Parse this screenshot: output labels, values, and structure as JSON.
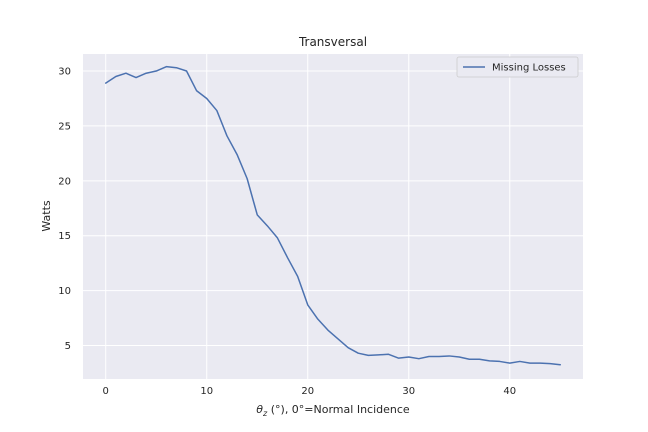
{
  "chart_data": {
    "type": "line",
    "title": "Transversal",
    "xlabel_symbol": "θ",
    "xlabel_subscript": "z",
    "xlabel_rest": " (°), 0°=Normal Incidence",
    "ylabel": "Watts",
    "xlim": [
      -2.25,
      47.25
    ],
    "ylim": [
      1.95,
      31.55
    ],
    "xticks": [
      0,
      10,
      20,
      30,
      40
    ],
    "yticks": [
      5,
      10,
      15,
      20,
      25,
      30
    ],
    "grid": true,
    "legend_position": "upper right",
    "series": [
      {
        "name": "Missing Losses",
        "color": "#4c72b0",
        "x": [
          0,
          1,
          2,
          3,
          4,
          5,
          6,
          7,
          8,
          9,
          10,
          11,
          12,
          13,
          14,
          15,
          16,
          17,
          18,
          19,
          20,
          21,
          22,
          23,
          24,
          25,
          26,
          27,
          28,
          29,
          30,
          31,
          32,
          33,
          34,
          35,
          36,
          37,
          38,
          39,
          40,
          41,
          42,
          43,
          44,
          45
        ],
        "y": [
          28.9,
          29.5,
          29.8,
          29.4,
          29.8,
          30.0,
          30.4,
          30.3,
          30.0,
          28.2,
          27.5,
          26.4,
          24.1,
          22.4,
          20.2,
          16.9,
          15.9,
          14.8,
          13.0,
          11.3,
          8.7,
          7.4,
          6.4,
          5.6,
          4.8,
          4.3,
          4.1,
          4.15,
          4.2,
          3.85,
          3.95,
          3.8,
          4.0,
          4.0,
          4.05,
          3.95,
          3.75,
          3.75,
          3.6,
          3.55,
          3.4,
          3.55,
          3.4,
          3.4,
          3.35,
          3.25
        ]
      }
    ]
  }
}
